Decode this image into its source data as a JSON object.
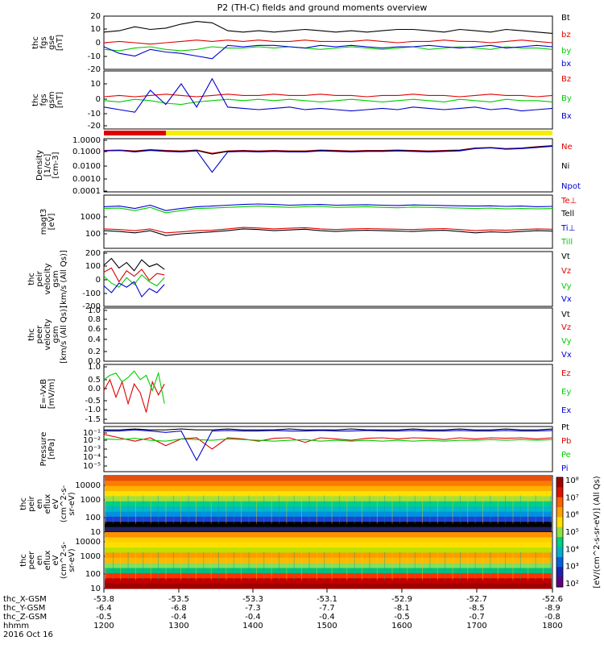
{
  "title": "P2 (TH-C) fields and ground moments overview",
  "colors": {
    "black": "#000000",
    "red": "#e00000",
    "green": "#00cc00",
    "blue": "#0000d0",
    "yellow": "#f5ee00"
  },
  "chart_data": [
    {
      "type": "line",
      "panel": "fgs-gse",
      "ylabel": [
        "thc",
        "fgs",
        "gse",
        "[nT]"
      ],
      "ylim": [
        -20,
        20
      ],
      "yticks": [
        "20",
        "10",
        "0",
        "-10",
        "-20"
      ],
      "series": [
        {
          "name": "Bt",
          "color": "black",
          "values": [
            8,
            9,
            12,
            10,
            11,
            14,
            16,
            15,
            9,
            8,
            9,
            8,
            9,
            10,
            9,
            8,
            9,
            8,
            9,
            10,
            10,
            9,
            8,
            10,
            9,
            8,
            10,
            9,
            8,
            7
          ]
        },
        {
          "name": "bz",
          "color": "red",
          "values": [
            0,
            1,
            0,
            -1,
            0,
            1,
            2,
            1,
            2,
            1,
            2,
            1,
            1,
            2,
            1,
            1,
            1,
            2,
            1,
            0,
            1,
            1,
            2,
            1,
            1,
            0,
            1,
            2,
            1,
            0
          ]
        },
        {
          "name": "by",
          "color": "green",
          "values": [
            -5,
            -6,
            -4,
            -3,
            -5,
            -6,
            -5,
            -3,
            -4,
            -4,
            -3,
            -4,
            -3,
            -4,
            -5,
            -4,
            -3,
            -4,
            -5,
            -4,
            -3,
            -5,
            -4,
            -3,
            -4,
            -5,
            -3,
            -4,
            -4,
            -5
          ]
        },
        {
          "name": "bx",
          "color": "blue",
          "values": [
            -3,
            -8,
            -10,
            -5,
            -7,
            -8,
            -10,
            -12,
            -2,
            -3,
            -2,
            -2,
            -3,
            -4,
            -2,
            -3,
            -2,
            -3,
            -4,
            -3,
            -3,
            -2,
            -3,
            -4,
            -3,
            -2,
            -4,
            -3,
            -2,
            -3
          ]
        }
      ]
    },
    {
      "type": "line",
      "panel": "fgs-gsm",
      "ylabel": [
        "thc",
        "fgs",
        "gsm",
        "[nT]"
      ],
      "ylim": [
        -25,
        20
      ],
      "yticks": [
        "10",
        "0",
        "-10",
        "-20"
      ],
      "series": [
        {
          "name": "Bz",
          "color": "red",
          "values": [
            0,
            1,
            0,
            1,
            2,
            1,
            0,
            1,
            2,
            1,
            1,
            2,
            1,
            1,
            2,
            1,
            1,
            0,
            1,
            1,
            2,
            1,
            1,
            0,
            1,
            2,
            1,
            1,
            0,
            1
          ]
        },
        {
          "name": "By",
          "color": "green",
          "values": [
            -3,
            -4,
            -2,
            -3,
            -5,
            -6,
            -4,
            -3,
            -2,
            -3,
            -2,
            -3,
            -2,
            -3,
            -4,
            -3,
            -2,
            -3,
            -4,
            -3,
            -2,
            -3,
            -4,
            -2,
            -3,
            -4,
            -2,
            -3,
            -3,
            -4
          ]
        },
        {
          "name": "Bx",
          "color": "blue",
          "values": [
            -8,
            -10,
            -12,
            5,
            -6,
            10,
            -8,
            14,
            -8,
            -9,
            -10,
            -9,
            -8,
            -10,
            -9,
            -10,
            -11,
            -10,
            -9,
            -10,
            -8,
            -9,
            -10,
            -9,
            -8,
            -10,
            -9,
            -11,
            -10,
            -9
          ]
        }
      ]
    },
    {
      "type": "line",
      "panel": "density",
      "ylabel": [
        "Density",
        "[1/cc]",
        "[cm-3]"
      ],
      "yscale": "log",
      "ylim": [
        0.0001,
        1.0
      ],
      "yticks": [
        "1.0000",
        "0.1000",
        "0.0100",
        "0.0010",
        "0.0001"
      ],
      "series": [
        {
          "name": "Ne",
          "color": "red",
          "values": [
            0.13,
            0.14,
            0.12,
            0.15,
            0.13,
            0.12,
            0.14,
            0.08,
            0.12,
            0.13,
            0.12,
            0.13,
            0.12,
            0.12,
            0.14,
            0.13,
            0.12,
            0.13,
            0.13,
            0.14,
            0.13,
            0.12,
            0.13,
            0.14,
            0.2,
            0.22,
            0.18,
            0.2,
            0.25,
            0.3
          ]
        },
        {
          "name": "Ni",
          "color": "black",
          "values": [
            0.12,
            0.13,
            0.11,
            0.14,
            0.12,
            0.11,
            0.13,
            0.07,
            0.11,
            0.12,
            0.11,
            0.12,
            0.11,
            0.11,
            0.13,
            0.12,
            0.11,
            0.12,
            0.12,
            0.13,
            0.12,
            0.11,
            0.12,
            0.13,
            0.19,
            0.21,
            0.17,
            0.19,
            0.24,
            0.28
          ]
        },
        {
          "name": "Npot",
          "color": "blue",
          "values": [
            0.12,
            0.13,
            0.1,
            0.13,
            0.11,
            0.1,
            0.12,
            0.003,
            0.1,
            0.11,
            0.1,
            0.11,
            0.1,
            0.1,
            0.12,
            0.11,
            0.1,
            0.11,
            0.11,
            0.12,
            0.11,
            0.1,
            0.11,
            0.12,
            0.18,
            0.2,
            0.16,
            0.18,
            0.22,
            0.27
          ]
        }
      ]
    },
    {
      "type": "line",
      "panel": "temperature",
      "ylabel": [
        "magt3",
        "[eV]"
      ],
      "yscale": "log",
      "ylim": [
        40,
        10000
      ],
      "yticks": [
        "1000",
        "100"
      ],
      "series": [
        {
          "name": "Te⊥",
          "color": "red",
          "values": [
            300,
            280,
            250,
            300,
            200,
            220,
            250,
            260,
            300,
            350,
            330,
            300,
            320,
            340,
            300,
            280,
            300,
            310,
            300,
            290,
            280,
            300,
            310,
            280,
            250,
            270,
            260,
            280,
            300,
            290
          ]
        },
        {
          "name": "Tell",
          "color": "black",
          "values": [
            250,
            230,
            200,
            250,
            150,
            180,
            200,
            220,
            250,
            300,
            280,
            250,
            270,
            290,
            250,
            230,
            250,
            260,
            250,
            240,
            230,
            250,
            260,
            230,
            200,
            220,
            210,
            230,
            250,
            240
          ]
        },
        {
          "name": "Ti⊥",
          "color": "blue",
          "values": [
            3000,
            3200,
            2500,
            3500,
            2000,
            2500,
            3000,
            3200,
            3500,
            3800,
            4000,
            3800,
            3500,
            3700,
            3800,
            3500,
            3600,
            3700,
            3500,
            3400,
            3600,
            3500,
            3400,
            3300,
            3200,
            3300,
            3100,
            3200,
            3000,
            3100
          ]
        },
        {
          "name": "Till",
          "color": "green",
          "values": [
            2500,
            2600,
            2000,
            2800,
            1600,
            2000,
            2500,
            2600,
            2800,
            3000,
            3200,
            3000,
            2800,
            3000,
            3100,
            2800,
            2900,
            3000,
            2800,
            2700,
            2900,
            2800,
            2700,
            2600,
            2500,
            2600,
            2400,
            2500,
            2400,
            2500
          ]
        }
      ]
    },
    {
      "type": "line",
      "panel": "peir-velocity",
      "ylabel": [
        "thc",
        "peir",
        "velocity",
        "gsm",
        "[km/s (All Qs)]"
      ],
      "ylim": [
        -200,
        200
      ],
      "yticks": [
        "200",
        "100",
        "0",
        "-100",
        "-200"
      ],
      "series": [
        {
          "name": "Vt",
          "color": "black",
          "values": [
            100,
            150,
            80,
            120,
            60,
            140,
            90,
            110,
            70
          ]
        },
        {
          "name": "Vz",
          "color": "red",
          "values": [
            50,
            80,
            -20,
            60,
            20,
            70,
            -10,
            40,
            30
          ]
        },
        {
          "name": "Vy",
          "color": "green",
          "values": [
            20,
            -30,
            -60,
            10,
            -40,
            30,
            -20,
            -50,
            10
          ]
        },
        {
          "name": "Vx",
          "color": "blue",
          "values": [
            -50,
            -100,
            -30,
            -60,
            -20,
            -130,
            -70,
            -100,
            -40
          ]
        }
      ]
    },
    {
      "type": "line",
      "panel": "peer-velocity",
      "ylabel": [
        "thc",
        "peer",
        "velocity",
        "gsm",
        "[km/s (All Qs)]"
      ],
      "ylim": [
        0.0,
        1.0
      ],
      "yticks": [
        "1.0",
        "0.8",
        "0.6",
        "0.4",
        "0.2",
        "0.0"
      ],
      "series": [
        {
          "name": "Vt",
          "color": "black",
          "values": []
        },
        {
          "name": "Vz",
          "color": "red",
          "values": []
        },
        {
          "name": "Vy",
          "color": "green",
          "values": []
        },
        {
          "name": "Vx",
          "color": "blue",
          "values": []
        }
      ]
    },
    {
      "type": "line",
      "panel": "efield",
      "ylabel": [
        "E=-VxB",
        "[mV/m]"
      ],
      "ylim": [
        -1.7,
        1.0
      ],
      "yticks": [
        "1.0",
        "0.5",
        "0.0",
        "-0.5",
        "-1.0",
        "-1.5"
      ],
      "series": [
        {
          "name": "Ez",
          "color": "red",
          "values": [
            -0.2,
            0.3,
            -0.5,
            0.2,
            -0.8,
            0.1,
            -0.3,
            -1.2,
            0.2,
            -0.4,
            0.1
          ]
        },
        {
          "name": "Ey",
          "color": "green",
          "values": [
            0.3,
            0.5,
            0.6,
            0.2,
            0.4,
            0.7,
            0.3,
            0.5,
            -0.2,
            0.6,
            -0.8
          ]
        },
        {
          "name": "Ex",
          "color": "blue",
          "values": []
        }
      ]
    },
    {
      "type": "line",
      "panel": "pressure",
      "ylabel": [
        "Pressure",
        "[nPa]"
      ],
      "yscale": "log",
      "ylim": [
        1e-05,
        0.1
      ],
      "yticks": [
        "10⁻¹",
        "10⁻²",
        "10⁻³",
        "10⁻⁴",
        "10⁻⁵"
      ],
      "series": [
        {
          "name": "Pt",
          "color": "black",
          "values": [
            0.05,
            0.05,
            0.06,
            0.05,
            0.05,
            0.06,
            0.05,
            0.05,
            0.06,
            0.05,
            0.05,
            0.05,
            0.06,
            0.05,
            0.05,
            0.05,
            0.06,
            0.05,
            0.05,
            0.05,
            0.06,
            0.05,
            0.05,
            0.06,
            0.05,
            0.05,
            0.06,
            0.05,
            0.05,
            0.06
          ]
        },
        {
          "name": "Pb",
          "color": "red",
          "values": [
            0.02,
            0.01,
            0.005,
            0.01,
            0.002,
            0.008,
            0.01,
            0.001,
            0.01,
            0.008,
            0.005,
            0.009,
            0.01,
            0.004,
            0.01,
            0.008,
            0.006,
            0.009,
            0.01,
            0.008,
            0.01,
            0.009,
            0.007,
            0.01,
            0.008,
            0.01,
            0.009,
            0.01,
            0.008,
            0.01
          ]
        },
        {
          "name": "Pe",
          "color": "green",
          "values": [
            0.008,
            0.007,
            0.009,
            0.006,
            0.005,
            0.008,
            0.007,
            0.006,
            0.008,
            0.007,
            0.006,
            0.005,
            0.006,
            0.007,
            0.005,
            0.006,
            0.005,
            0.006,
            0.005,
            0.006,
            0.005,
            0.006,
            0.005,
            0.006,
            0.006,
            0.007,
            0.006,
            0.007,
            0.006,
            0.007
          ]
        },
        {
          "name": "Pi",
          "color": "blue",
          "values": [
            0.04,
            0.04,
            0.05,
            0.04,
            0.03,
            0.04,
            0.0001,
            0.04,
            0.045,
            0.04,
            0.04,
            0.045,
            0.04,
            0.04,
            0.045,
            0.04,
            0.04,
            0.045,
            0.04,
            0.04,
            0.045,
            0.04,
            0.04,
            0.045,
            0.04,
            0.04,
            0.045,
            0.04,
            0.04,
            0.045
          ]
        }
      ]
    },
    {
      "type": "heatmap",
      "panel": "peir-spectrogram",
      "ylabel": [
        "thc",
        "peir",
        "en",
        "eflux",
        "eV",
        "(cm^2-s-",
        "sr-eV)"
      ],
      "yticks": [
        "10000",
        "1000",
        "100",
        "10"
      ]
    },
    {
      "type": "heatmap",
      "panel": "peer-spectrogram",
      "ylabel": [
        "thc",
        "peer",
        "en",
        "eflux",
        "eV",
        "(cm^2-s-",
        "sr-eV)"
      ],
      "yticks": [
        "10000",
        "1000",
        "100",
        "10"
      ],
      "colorbar": {
        "label": "[eV/(cm^2-s-sr-eV)] (All Qs)",
        "ticks": [
          "10⁸",
          "10⁷",
          "10⁶",
          "10⁵",
          "10⁴",
          "10³",
          "10²"
        ]
      }
    }
  ],
  "xaxis": {
    "rows": [
      {
        "label": "thc_X-GSM",
        "values": [
          "-53.8",
          "-53.5",
          "-53.3",
          "-53.1",
          "-52.9",
          "-52.7",
          "-52.6"
        ]
      },
      {
        "label": "thc_Y-GSM",
        "values": [
          "-6.4",
          "-6.8",
          "-7.3",
          "-7.7",
          "-8.1",
          "-8.5",
          "-8.9"
        ]
      },
      {
        "label": "thc_Z-GSM",
        "values": [
          "-0.5",
          "-0.4",
          "-0.4",
          "-0.4",
          "-0.5",
          "-0.7",
          "-0.8"
        ]
      },
      {
        "label": "hhmm",
        "values": [
          "1200",
          "1300",
          "1400",
          "1500",
          "1600",
          "1700",
          "1800"
        ]
      }
    ],
    "date": "2016 Oct 16"
  }
}
